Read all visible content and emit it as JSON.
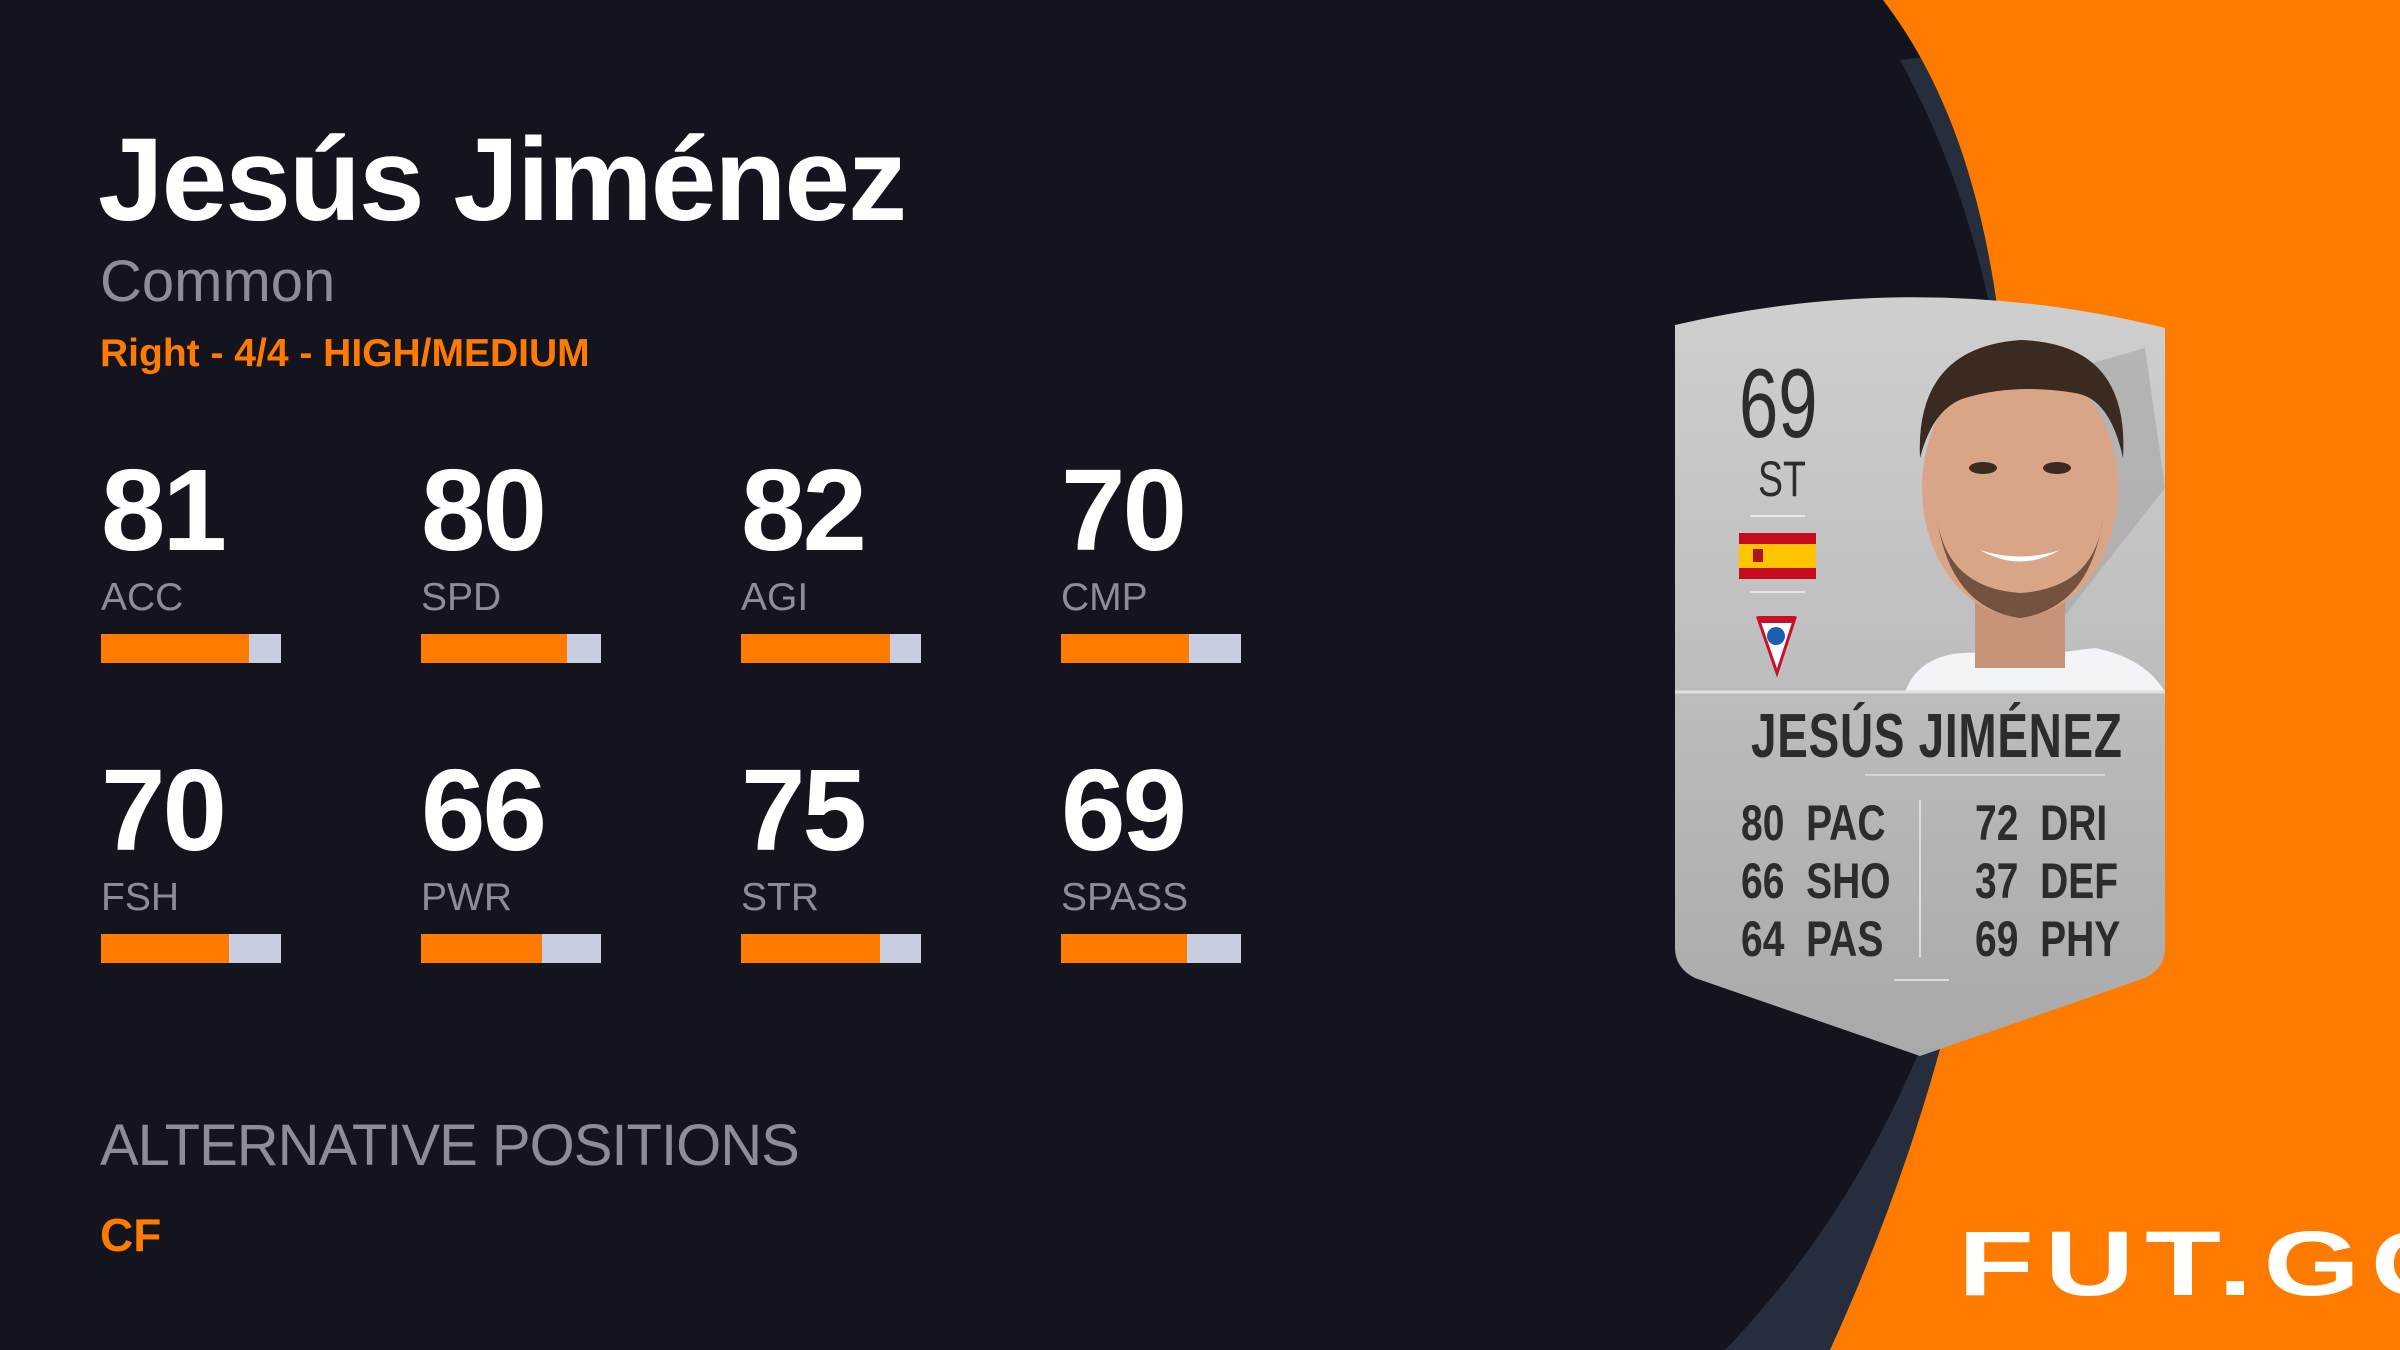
{
  "player": {
    "name": "Jesús Jiménez",
    "rarity": "Common",
    "foot_skills_workrates": "Right - 4/4 - HIGH/MEDIUM"
  },
  "stats": [
    {
      "label": "ACC",
      "value": "81",
      "fraction": 0.82
    },
    {
      "label": "SPD",
      "value": "80",
      "fraction": 0.81
    },
    {
      "label": "AGI",
      "value": "82",
      "fraction": 0.83
    },
    {
      "label": "CMP",
      "value": "70",
      "fraction": 0.71
    },
    {
      "label": "FSH",
      "value": "70",
      "fraction": 0.71
    },
    {
      "label": "PWR",
      "value": "66",
      "fraction": 0.67
    },
    {
      "label": "STR",
      "value": "75",
      "fraction": 0.77
    },
    {
      "label": "SPASS",
      "value": "69",
      "fraction": 0.7
    }
  ],
  "alternative_positions": {
    "title": "ALTERNATIVE POSITIONS",
    "positions": [
      "CF"
    ]
  },
  "card": {
    "rating": "69",
    "position": "ST",
    "name": "JESÚS JIMÉNEZ",
    "nation_icon": "spain-flag-icon",
    "club_icon": "gornik-zabrze-badge-icon",
    "face_stats": [
      {
        "value": "80",
        "label": "PAC"
      },
      {
        "value": "66",
        "label": "SHO"
      },
      {
        "value": "64",
        "label": "PAS"
      },
      {
        "value": "72",
        "label": "DRI"
      },
      {
        "value": "37",
        "label": "DEF"
      },
      {
        "value": "69",
        "label": "PHY"
      }
    ]
  },
  "brand": {
    "logo": "FUT.GG"
  },
  "colors": {
    "accent": "#ff7b00",
    "background": "#13141d",
    "band": "#262d3d",
    "bar_track": "#c9cde0",
    "muted_text": "#8b8d99"
  }
}
